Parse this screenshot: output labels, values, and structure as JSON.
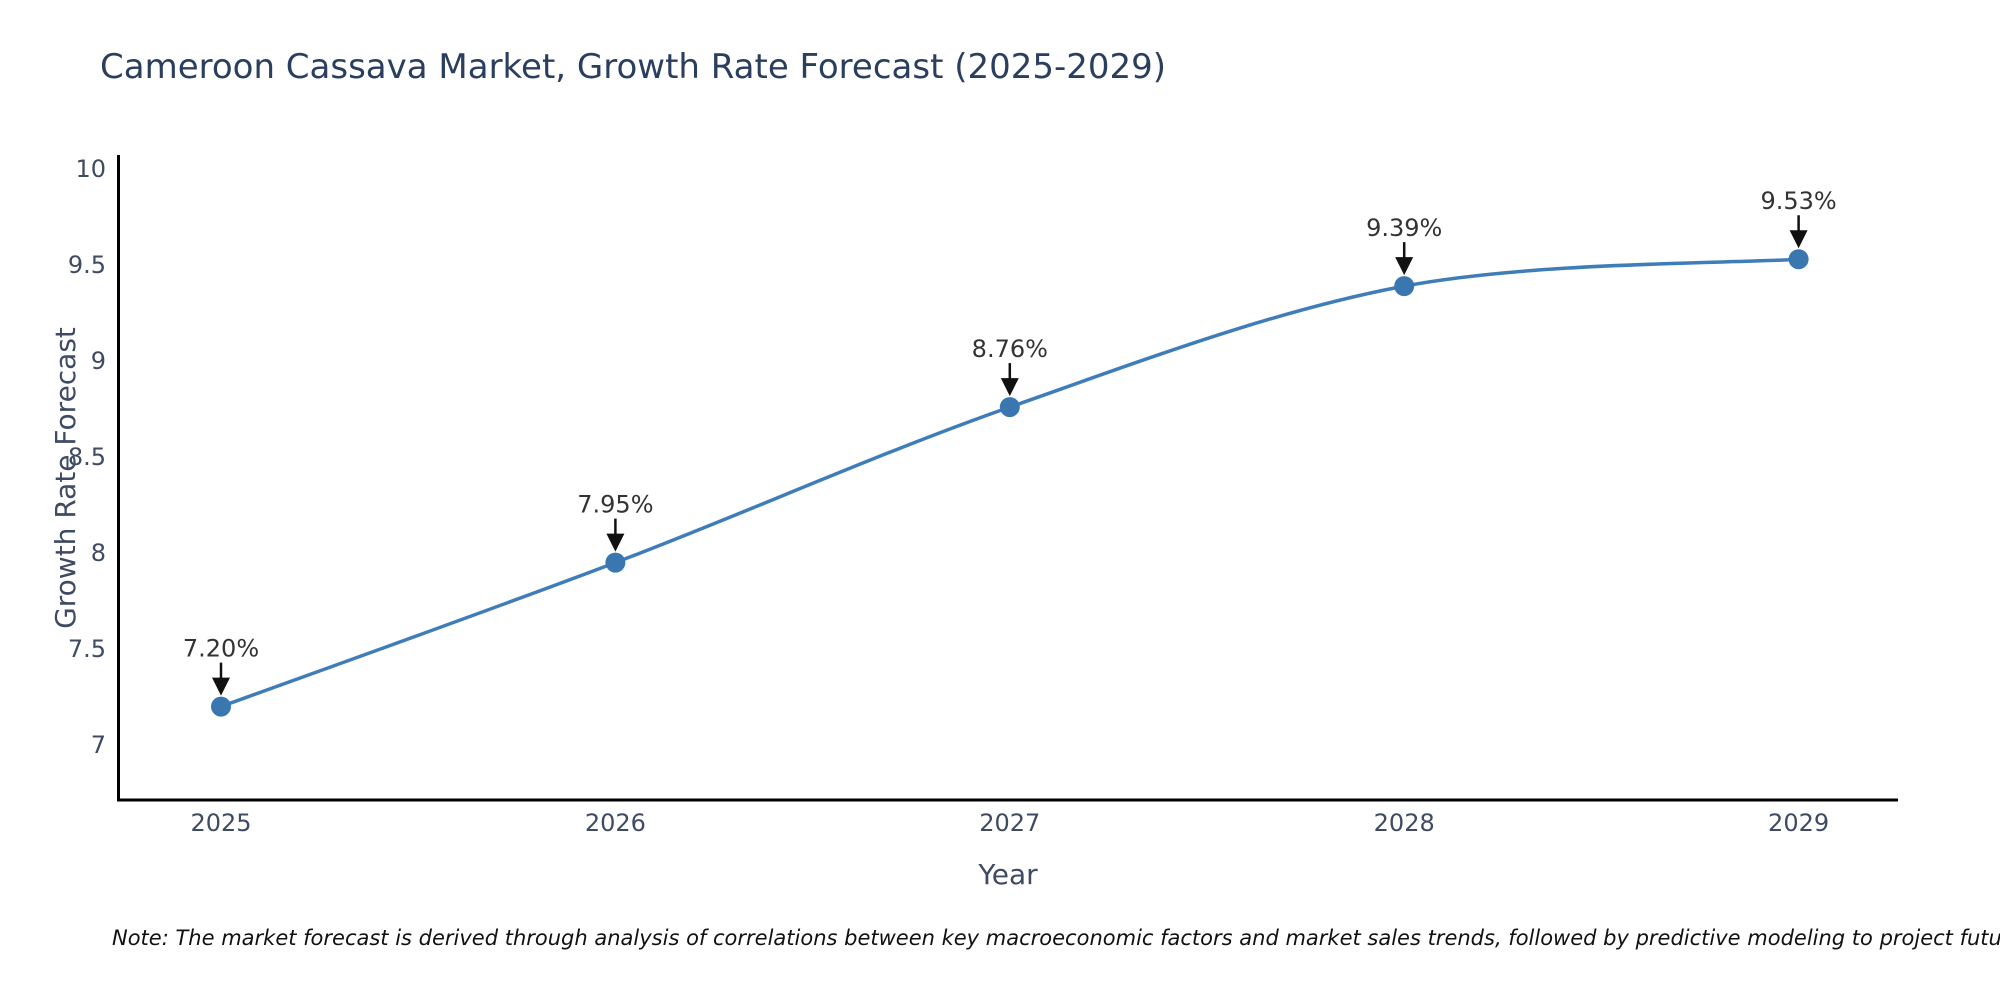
{
  "chart_data": {
    "type": "line",
    "title": "Cameroon Cassava Market, Growth Rate Forecast (2025-2029)",
    "xlabel": "Year",
    "ylabel": "Growth Rate Forecast",
    "x": [
      2025,
      2026,
      2027,
      2028,
      2029
    ],
    "x_tick_labels": [
      "2025",
      "2026",
      "2027",
      "2028",
      "2029"
    ],
    "series": [
      {
        "name": "Growth Rate Forecast",
        "values": [
          7.2,
          7.95,
          8.76,
          9.39,
          9.53
        ]
      }
    ],
    "point_labels": [
      "7.20%",
      "7.95%",
      "8.76%",
      "9.39%",
      "9.53%"
    ],
    "y_ticks": [
      7,
      7.5,
      8,
      8.5,
      9,
      9.5,
      10
    ],
    "ylim": [
      6.71,
      10.07
    ],
    "line_shape": "spline",
    "grid": false,
    "legend_position": "none",
    "colors": {
      "line": "#3f7db8",
      "marker": "#3a77b0",
      "axis": "#000000",
      "tick_label": "#3f4a63",
      "axis_title": "#3f4a63",
      "chart_title": "#2a3f5f",
      "annotation_text": "#333333",
      "annotation_arrow": "#111111",
      "background": "#ffffff"
    }
  },
  "note": {
    "text": "Note: The market forecast is derived through analysis of correlations between key macroeconomic factors and market sales trends, followed by predictive modeling to project future sales"
  }
}
